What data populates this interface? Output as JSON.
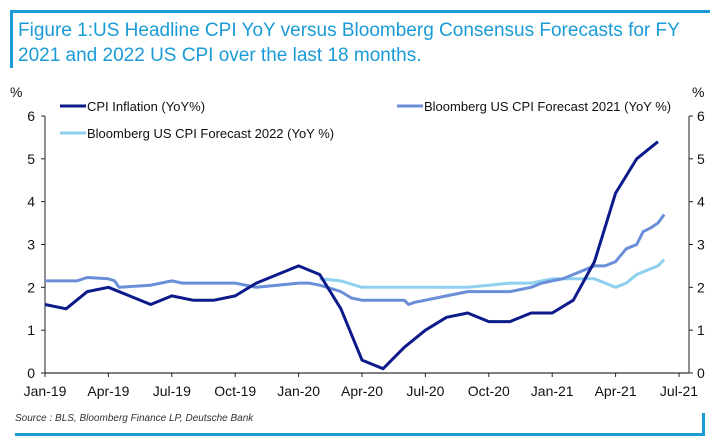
{
  "title": "Figure 1:US Headline CPI YoY versus Bloomberg Consensus Forecasts for FY 2021 and 2022 US CPI over the last 18 months.",
  "source": "Source : BLS, Bloomberg Finance LP, Deutsche Bank",
  "colors": {
    "accent": "#1a9bd7",
    "cpi": "#0d1a8a",
    "f2021": "#6a8fd8",
    "f2022": "#8fd0ef"
  },
  "chart_data": {
    "type": "line",
    "title": "Figure 1:US Headline CPI YoY versus Bloomberg Consensus Forecasts for FY 2021 and 2022 US CPI over the last 18 months.",
    "xlabel": "",
    "ylabel_left": "%",
    "ylabel_right": "%",
    "ylim": [
      0,
      6
    ],
    "yticks": [
      "0",
      "1",
      "2",
      "3",
      "4",
      "5",
      "6"
    ],
    "xticks": [
      "Jan-19",
      "Apr-19",
      "Jul-19",
      "Oct-19",
      "Jan-20",
      "Apr-20",
      "Jul-20",
      "Oct-20",
      "Jan-21",
      "Apr-21",
      "Jul-21"
    ],
    "x_months_range": [
      0,
      30
    ],
    "grid": false,
    "legend_position": "top",
    "series": [
      {
        "name": "CPI Inflation (YoY%)",
        "color": "#0d1a8a",
        "x": [
          0,
          1,
          2,
          3,
          4,
          5,
          6,
          7,
          8,
          9,
          10,
          11,
          12,
          13,
          14,
          15,
          16,
          17,
          18,
          19,
          20,
          21,
          22,
          23,
          24,
          25,
          26,
          27,
          28,
          29
        ],
        "values": [
          1.6,
          1.5,
          1.9,
          2.0,
          1.8,
          1.6,
          1.8,
          1.7,
          1.7,
          1.8,
          2.1,
          2.3,
          2.5,
          2.3,
          1.5,
          0.3,
          0.1,
          0.6,
          1.0,
          1.3,
          1.4,
          1.2,
          1.2,
          1.4,
          1.4,
          1.7,
          2.6,
          4.2,
          5.0,
          5.4
        ]
      },
      {
        "name": "Bloomberg US CPI  Forecast 2021 (YoY %)",
        "color": "#6a8fd8",
        "x": [
          0,
          1.5,
          2,
          3,
          3.3,
          3.5,
          5,
          6,
          6.5,
          7,
          8,
          9,
          10,
          11,
          12,
          12.5,
          13,
          14,
          14.5,
          15,
          16,
          17,
          17.2,
          17.5,
          18,
          19,
          20,
          21,
          22,
          23,
          23.5,
          24,
          24.5,
          25,
          25.5,
          26,
          26.5,
          27,
          27.5,
          28,
          28.3,
          28.7,
          29,
          29.3
        ],
        "values": [
          2.15,
          2.15,
          2.23,
          2.2,
          2.15,
          2.0,
          2.05,
          2.15,
          2.1,
          2.1,
          2.1,
          2.1,
          2.0,
          2.05,
          2.1,
          2.1,
          2.05,
          1.9,
          1.75,
          1.7,
          1.7,
          1.7,
          1.6,
          1.65,
          1.7,
          1.8,
          1.9,
          1.9,
          1.9,
          2.0,
          2.1,
          2.15,
          2.2,
          2.3,
          2.4,
          2.5,
          2.5,
          2.6,
          2.9,
          3.0,
          3.3,
          3.4,
          3.5,
          3.7
        ]
      },
      {
        "name": "Bloomberg US CPI  Forecast 2022 (YoY %)",
        "color": "#8fd0ef",
        "x": [
          13,
          14,
          15,
          16,
          17,
          18,
          19,
          20,
          21,
          22,
          23,
          24,
          25,
          26,
          27,
          27.5,
          28,
          28.5,
          29,
          29.3
        ],
        "values": [
          2.2,
          2.15,
          2.0,
          2.0,
          2.0,
          2.0,
          2.0,
          2.0,
          2.05,
          2.1,
          2.1,
          2.2,
          2.2,
          2.2,
          2.0,
          2.1,
          2.3,
          2.4,
          2.5,
          2.65
        ]
      }
    ]
  }
}
